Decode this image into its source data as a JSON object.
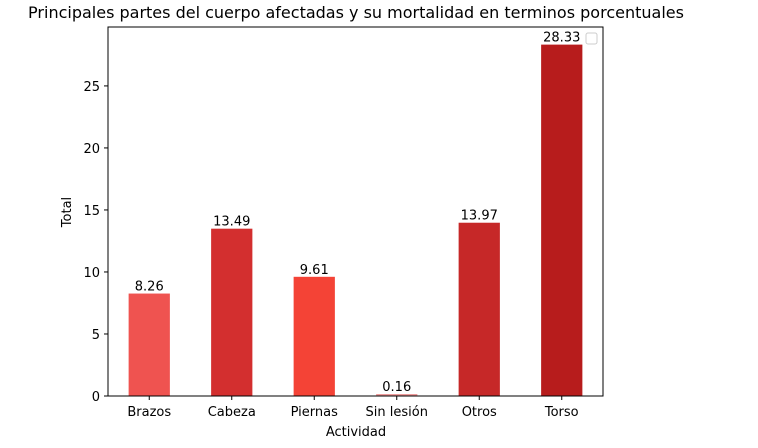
{
  "chart_data": {
    "type": "bar",
    "title": "Principales partes del cuerpo afectadas y su mortalidad en terminos porcentuales",
    "xlabel": "Actividad",
    "ylabel": "Total",
    "categories": [
      "Brazos",
      "Cabeza",
      "Piernas",
      "Sin lesión",
      "Otros",
      "Torso"
    ],
    "values": [
      8.26,
      13.49,
      9.61,
      0.16,
      13.97,
      28.33
    ],
    "data_labels": [
      "8.26",
      "13.49",
      "9.61",
      "0.16",
      "13.97",
      "28.33"
    ],
    "colors": [
      "#ef5350",
      "#d32f2f",
      "#f44336",
      "#ef9a9a",
      "#c62828",
      "#b71c1c"
    ],
    "yticks": [
      0,
      5,
      10,
      15,
      20,
      25
    ],
    "ytick_labels": [
      "0",
      "5",
      "10",
      "15",
      "20",
      "25"
    ],
    "ylim": [
      0,
      29.75
    ],
    "grid": false,
    "legend": "top-right, empty"
  }
}
